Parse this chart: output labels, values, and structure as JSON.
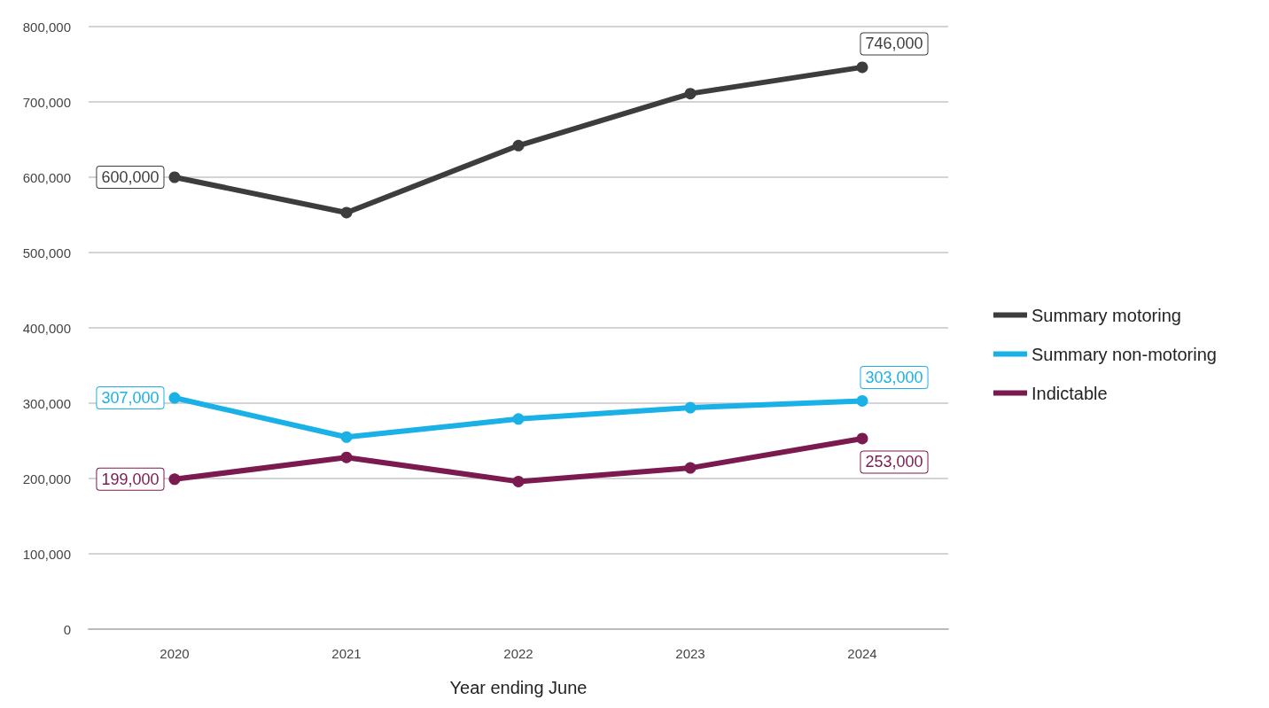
{
  "chart_data": {
    "type": "line",
    "xlabel": "Year ending June",
    "categories": [
      "2020",
      "2021",
      "2022",
      "2023",
      "2024"
    ],
    "series": [
      {
        "name": "Summary motoring",
        "color": "#3d3d3d",
        "values": [
          600000,
          553000,
          642000,
          711000,
          746000
        ],
        "value_labels": [
          "600,000",
          null,
          null,
          null,
          "746,000"
        ]
      },
      {
        "name": "Summary non-motoring",
        "color": "#1ab1e6",
        "values": [
          307000,
          255000,
          279000,
          294000,
          303000
        ],
        "value_labels": [
          "307,000",
          null,
          null,
          null,
          "303,000"
        ]
      },
      {
        "name": "Indictable",
        "color": "#7a1a4f",
        "values": [
          199000,
          228000,
          196000,
          214000,
          253000
        ],
        "value_labels": [
          "199,000",
          null,
          null,
          null,
          "253,000"
        ]
      }
    ],
    "ylim": [
      0,
      800000
    ],
    "yticks": [
      0,
      {
        "value": 100000,
        "label": "100,000"
      },
      {
        "value": 200000,
        "label": "200,000"
      },
      {
        "value": 300000,
        "label": "300,000"
      },
      {
        "value": 400000,
        "label": "400,000"
      },
      {
        "value": 500000,
        "label": "500,000"
      },
      {
        "value": 600000,
        "label": "600,000"
      },
      {
        "value": 700000,
        "label": "700,000"
      },
      {
        "value": 800000,
        "label": "800,000"
      }
    ],
    "grid": "y",
    "legend": "right",
    "marker": "circle",
    "line_style": "solid"
  }
}
